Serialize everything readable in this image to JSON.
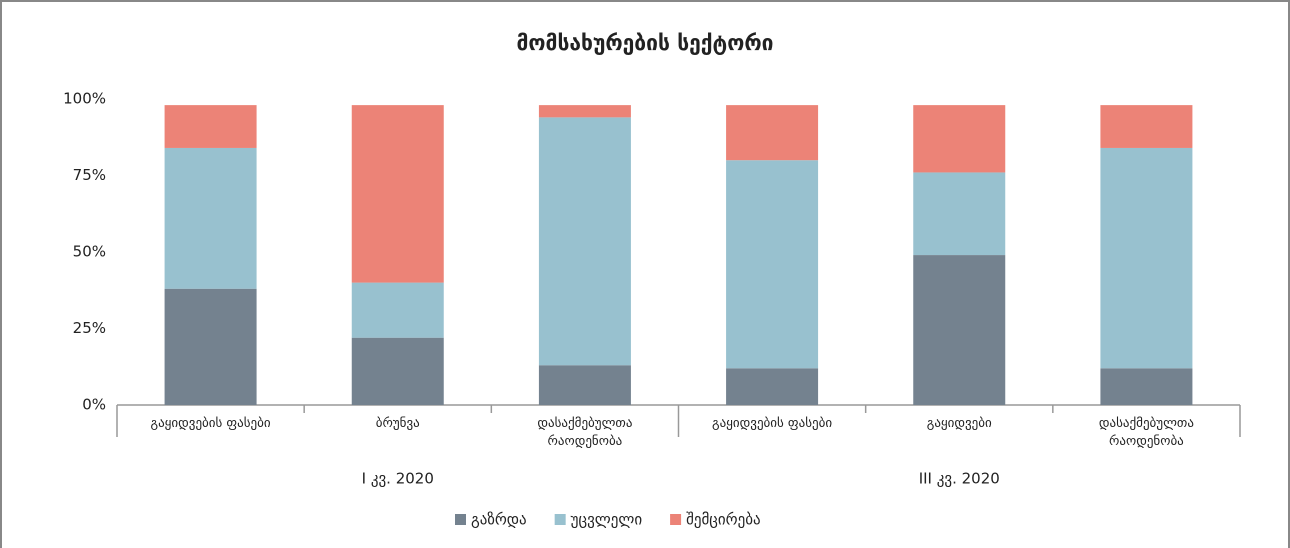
{
  "chart_data": {
    "type": "stacked_bar",
    "title": "მომსახურების სექტორი",
    "categories": [
      "გაყიდვების ფასები",
      "ბრუნვა",
      "დასაქმებულთა რაოდენობა",
      "გაყიდვების ფასები",
      "გაყიდვები",
      "დასაქმებულთა რაოდენობა"
    ],
    "groups": [
      "I კვ. 2020",
      "III კვ. 2020"
    ],
    "series": [
      {
        "name": "გაზრდა",
        "color": "#74828f",
        "values": [
          38,
          22,
          13,
          12,
          49,
          12
        ]
      },
      {
        "name": "უცვლელი",
        "color": "#98c1cf",
        "values": [
          46,
          18,
          81,
          68,
          27,
          72
        ]
      },
      {
        "name": "შემცირება",
        "color": "#ec8377",
        "values": [
          14,
          58,
          4,
          18,
          22,
          14
        ]
      }
    ],
    "ylim": [
      0,
      100
    ],
    "yticks": [
      {
        "value": 0,
        "label": "0%"
      },
      {
        "value": 25,
        "label": "25%"
      },
      {
        "value": 50,
        "label": "50%"
      },
      {
        "value": 75,
        "label": "75%"
      },
      {
        "value": 100,
        "label": "100%"
      }
    ],
    "grid": false,
    "legend": "bottom"
  }
}
